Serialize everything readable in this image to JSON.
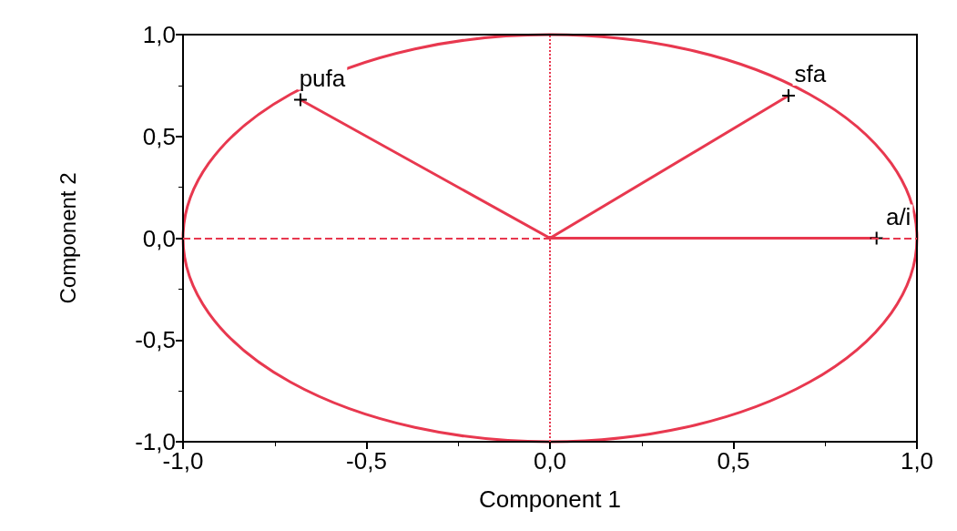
{
  "chart_data": {
    "type": "line",
    "xlabel": "Component 1",
    "ylabel": "Component 2",
    "xlim": [
      -1,
      1
    ],
    "ylim": [
      -1,
      1
    ],
    "xticks": [
      {
        "value": -1,
        "label": "-1,0"
      },
      {
        "value": -0.5,
        "label": "-0,5"
      },
      {
        "value": 0,
        "label": "0,0"
      },
      {
        "value": 0.5,
        "label": "0,5"
      },
      {
        "value": 1,
        "label": "1,0"
      }
    ],
    "yticks": [
      {
        "value": -1,
        "label": "-1,0"
      },
      {
        "value": -0.5,
        "label": "-0,5"
      },
      {
        "value": 0,
        "label": "0,0"
      },
      {
        "value": 0.5,
        "label": "0,5"
      },
      {
        "value": 1,
        "label": "1,0"
      }
    ],
    "series": [
      {
        "name": "pufa",
        "color": "#e8384f",
        "x": [
          0,
          -0.68
        ],
        "values": [
          0,
          0.68
        ]
      },
      {
        "name": "sfa",
        "color": "#e8384f",
        "x": [
          0,
          0.65
        ],
        "values": [
          0,
          0.7
        ]
      },
      {
        "name": "a/i",
        "color": "#e8384f",
        "x": [
          0,
          0.89
        ],
        "values": [
          0,
          0
        ]
      }
    ],
    "ref_lines": [
      {
        "axis": "x",
        "value": 0,
        "color": "#e8384f",
        "line_style": "dotted"
      },
      {
        "axis": "y",
        "value": 0,
        "color": "#e8384f",
        "line_style": "dashed"
      }
    ],
    "marker": "cross"
  }
}
